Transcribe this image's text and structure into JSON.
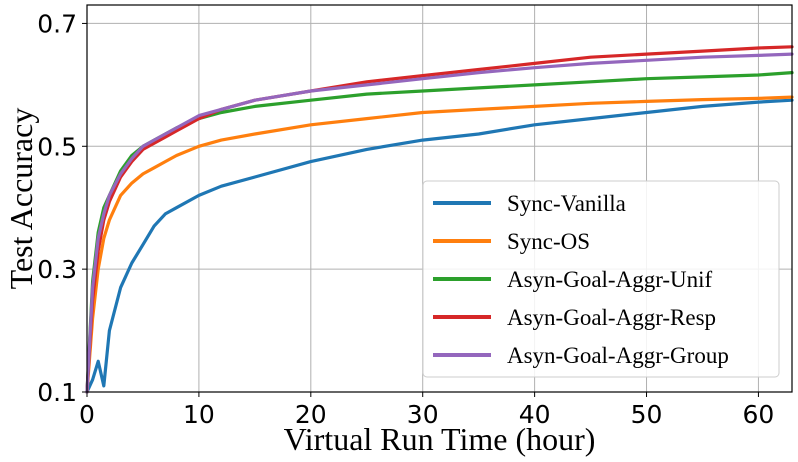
{
  "chart_data": {
    "type": "line",
    "xlabel": "Virtual Run Time (hour)",
    "ylabel": "Test Accuracy",
    "xlim": [
      0,
      63
    ],
    "ylim": [
      0.1,
      0.73
    ],
    "xticks": [
      0,
      10,
      20,
      30,
      40,
      50,
      60
    ],
    "yticks": [
      0.1,
      0.3,
      0.5,
      0.7
    ],
    "xtick_labels": [
      "0",
      "10",
      "20",
      "30",
      "40",
      "50",
      "60"
    ],
    "ytick_labels": [
      "0.1",
      "0.3",
      "0.5",
      "0.7"
    ],
    "grid": true,
    "legend_position": "lower-right",
    "series": [
      {
        "name": "Sync-Vanilla",
        "color": "#1f77b4",
        "x": [
          0,
          0.5,
          1,
          1.5,
          2,
          3,
          4,
          5,
          6,
          7,
          8,
          10,
          12,
          15,
          20,
          25,
          30,
          35,
          40,
          45,
          50,
          55,
          60,
          63
        ],
        "y": [
          0.1,
          0.12,
          0.15,
          0.11,
          0.2,
          0.27,
          0.31,
          0.34,
          0.37,
          0.39,
          0.4,
          0.42,
          0.435,
          0.45,
          0.475,
          0.495,
          0.51,
          0.52,
          0.535,
          0.545,
          0.555,
          0.565,
          0.572,
          0.575
        ]
      },
      {
        "name": "Sync-OS",
        "color": "#ff7f0e",
        "x": [
          0,
          0.5,
          1,
          1.5,
          2,
          3,
          4,
          5,
          6,
          7,
          8,
          10,
          12,
          15,
          20,
          25,
          30,
          35,
          40,
          45,
          50,
          55,
          60,
          63
        ],
        "y": [
          0.1,
          0.22,
          0.3,
          0.35,
          0.38,
          0.42,
          0.44,
          0.455,
          0.465,
          0.475,
          0.485,
          0.5,
          0.51,
          0.52,
          0.535,
          0.545,
          0.555,
          0.56,
          0.565,
          0.57,
          0.573,
          0.576,
          0.578,
          0.58
        ]
      },
      {
        "name": "Asyn-Goal-Aggr-Unif",
        "color": "#2ca02c",
        "x": [
          0,
          0.5,
          1,
          1.5,
          2,
          3,
          4,
          5,
          6,
          7,
          8,
          10,
          12,
          15,
          20,
          25,
          30,
          35,
          40,
          45,
          50,
          55,
          60,
          63
        ],
        "y": [
          0.1,
          0.28,
          0.36,
          0.4,
          0.42,
          0.46,
          0.485,
          0.5,
          0.51,
          0.52,
          0.53,
          0.545,
          0.555,
          0.565,
          0.575,
          0.585,
          0.59,
          0.595,
          0.6,
          0.605,
          0.61,
          0.613,
          0.616,
          0.62
        ]
      },
      {
        "name": "Asyn-Goal-Aggr-Resp",
        "color": "#d62728",
        "x": [
          0,
          0.5,
          1,
          1.5,
          2,
          3,
          4,
          5,
          6,
          7,
          8,
          10,
          12,
          15,
          20,
          25,
          30,
          35,
          40,
          45,
          50,
          55,
          60,
          63
        ],
        "y": [
          0.1,
          0.25,
          0.33,
          0.38,
          0.41,
          0.45,
          0.475,
          0.495,
          0.505,
          0.515,
          0.525,
          0.545,
          0.56,
          0.575,
          0.59,
          0.605,
          0.615,
          0.625,
          0.635,
          0.645,
          0.65,
          0.655,
          0.66,
          0.662
        ]
      },
      {
        "name": "Asyn-Goal-Aggr-Group",
        "color": "#9467bd",
        "x": [
          0,
          0.5,
          1,
          1.5,
          2,
          3,
          4,
          5,
          6,
          7,
          8,
          10,
          12,
          15,
          20,
          25,
          30,
          35,
          40,
          45,
          50,
          55,
          60,
          63
        ],
        "y": [
          0.1,
          0.27,
          0.35,
          0.39,
          0.42,
          0.455,
          0.48,
          0.5,
          0.51,
          0.52,
          0.53,
          0.55,
          0.56,
          0.575,
          0.59,
          0.6,
          0.61,
          0.62,
          0.628,
          0.635,
          0.64,
          0.645,
          0.648,
          0.65
        ]
      }
    ]
  }
}
